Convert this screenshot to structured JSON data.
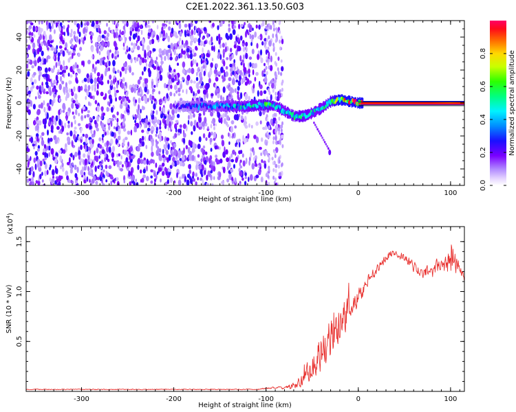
{
  "title": "C2E1.2022.361.13.50.G03",
  "chart_data": [
    {
      "type": "heatmap",
      "name": "spectrogram",
      "xlabel": "Height of straight line (km)",
      "ylabel": "Frequency (Hz)",
      "xlim": [
        -360,
        115
      ],
      "ylim": [
        -50,
        50
      ],
      "xticks": [
        -300,
        -200,
        -100,
        0,
        100
      ],
      "yticks": [
        -40,
        -20,
        0,
        20,
        40
      ],
      "colorbar": {
        "label": "Normalized spectral amplitude",
        "range": [
          0,
          1
        ],
        "ticks": [
          "0.0",
          "0.2",
          "0.4",
          "0.6",
          "0.8"
        ],
        "tick_values": [
          0.0,
          0.2,
          0.4,
          0.6,
          0.8
        ]
      },
      "noise_region_km": [
        -360,
        -82
      ],
      "signal_track": {
        "x": [
          -200,
          -180,
          -160,
          -140,
          -120,
          -100,
          -90,
          -80,
          -70,
          -60,
          -50,
          -40,
          -30,
          -20,
          -10,
          0,
          20,
          50,
          80,
          100,
          115
        ],
        "y": [
          -2,
          -2,
          -2,
          -2,
          -2,
          -1,
          -2,
          -5,
          -8,
          -8,
          -6,
          -3,
          1,
          2,
          1,
          0,
          0,
          0,
          0,
          0,
          0
        ],
        "amplitude": [
          0.2,
          0.35,
          0.4,
          0.45,
          0.5,
          0.6,
          0.5,
          0.5,
          0.55,
          0.55,
          0.5,
          0.5,
          0.6,
          0.8,
          0.9,
          0.95,
          0.95,
          0.95,
          0.95,
          0.9,
          0.95
        ]
      }
    },
    {
      "type": "line",
      "name": "snr",
      "xlabel": "Height of straight line (km)",
      "ylabel": "SNR (10 * v/v)",
      "scale_label": "(x10",
      "scale_exponent": "4",
      "scale_suffix": ")",
      "xlim": [
        -360,
        115
      ],
      "ylim": [
        0,
        1.65
      ],
      "xticks": [
        -300,
        -200,
        -100,
        0,
        100
      ],
      "yticks": [
        0.5,
        1.0,
        1.5
      ],
      "ytick_labels": [
        "0.5",
        "1.0",
        "1.5"
      ],
      "color": "#e8302e",
      "envelope": {
        "x": [
          -360,
          -110,
          -90,
          -80,
          -70,
          -60,
          -50,
          -40,
          -30,
          -20,
          -10,
          0,
          10,
          20,
          30,
          40,
          50,
          60,
          70,
          80,
          90,
          100,
          110,
          115
        ],
        "y": [
          0.02,
          0.02,
          0.04,
          0.03,
          0.06,
          0.12,
          0.25,
          0.4,
          0.55,
          0.65,
          0.85,
          0.95,
          1.1,
          1.22,
          1.35,
          1.4,
          1.33,
          1.25,
          1.18,
          1.2,
          1.28,
          1.3,
          1.25,
          1.1
        ],
        "noise": [
          0.006,
          0.006,
          0.015,
          0.02,
          0.05,
          0.1,
          0.18,
          0.25,
          0.3,
          0.3,
          0.2,
          0.12,
          0.08,
          0.06,
          0.06,
          0.05,
          0.06,
          0.07,
          0.08,
          0.1,
          0.1,
          0.2,
          0.08,
          0.05
        ]
      }
    }
  ]
}
